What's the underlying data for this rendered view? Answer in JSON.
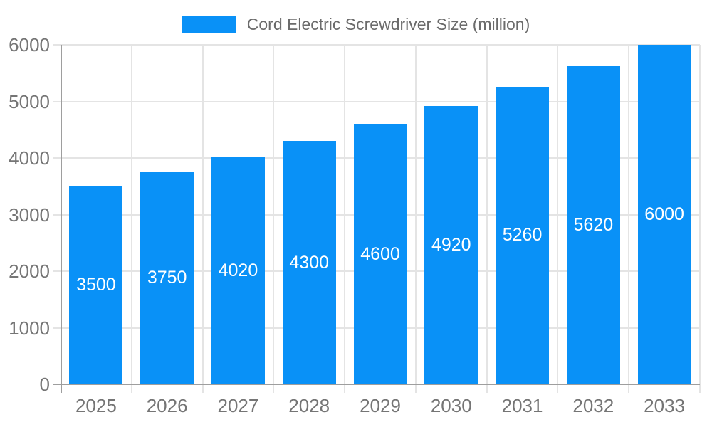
{
  "chart_data": {
    "type": "bar",
    "legend_label": "Cord Electric Screwdriver Size (million)",
    "categories": [
      "2025",
      "2026",
      "2027",
      "2028",
      "2029",
      "2030",
      "2031",
      "2032",
      "2033"
    ],
    "values": [
      3500,
      3750,
      4020,
      4300,
      4600,
      4920,
      5260,
      5620,
      6000
    ],
    "bar_value_labels": [
      "3500",
      "3750",
      "4020",
      "4300",
      "4600",
      "4920",
      "5260",
      "5620",
      "6000"
    ],
    "xlabel": "",
    "ylabel": "",
    "ylim": [
      0,
      6000
    ],
    "yticks": [
      0,
      1000,
      2000,
      3000,
      4000,
      5000,
      6000
    ],
    "grid": true,
    "legend_position": "top-center",
    "colors": {
      "bar": "#0991f7",
      "grid": "#e4e4e4",
      "axis_line": "#9e9e9e",
      "axis_text": "#757575",
      "legend_text": "#6b6b6b",
      "bar_label": "#ffffff",
      "background": "#ffffff"
    }
  }
}
